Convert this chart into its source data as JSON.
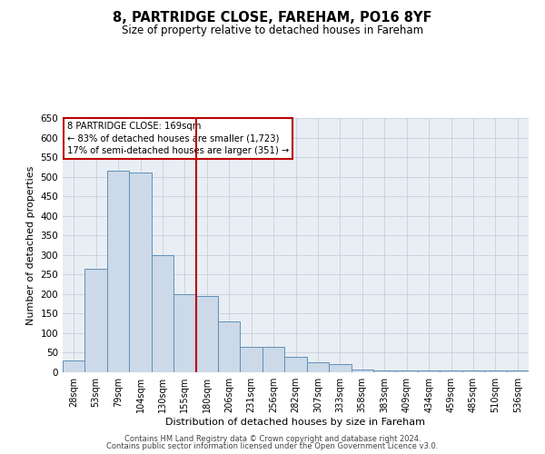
{
  "title1": "8, PARTRIDGE CLOSE, FAREHAM, PO16 8YF",
  "title2": "Size of property relative to detached houses in Fareham",
  "xlabel": "Distribution of detached houses by size in Fareham",
  "ylabel": "Number of detached properties",
  "categories": [
    "28sqm",
    "53sqm",
    "79sqm",
    "104sqm",
    "130sqm",
    "155sqm",
    "180sqm",
    "206sqm",
    "231sqm",
    "256sqm",
    "282sqm",
    "307sqm",
    "333sqm",
    "358sqm",
    "383sqm",
    "409sqm",
    "434sqm",
    "459sqm",
    "485sqm",
    "510sqm",
    "536sqm"
  ],
  "values": [
    30,
    265,
    515,
    510,
    300,
    200,
    195,
    130,
    65,
    65,
    40,
    25,
    20,
    8,
    5,
    5,
    5,
    5,
    5,
    5,
    5
  ],
  "bar_color": "#ccd9e8",
  "bar_edgecolor": "#6090b8",
  "bar_linewidth": 0.7,
  "vline_x_index": 6,
  "vline_color": "#bb0000",
  "vline_linewidth": 1.5,
  "annotation_line1": "8 PARTRIDGE CLOSE: 169sqm",
  "annotation_line2": "← 83% of detached houses are smaller (1,723)",
  "annotation_line3": "17% of semi-detached houses are larger (351) →",
  "box_edgecolor": "#bb0000",
  "ylim": [
    0,
    650
  ],
  "yticks": [
    0,
    50,
    100,
    150,
    200,
    250,
    300,
    350,
    400,
    450,
    500,
    550,
    600,
    650
  ],
  "footer_line1": "Contains HM Land Registry data © Crown copyright and database right 2024.",
  "footer_line2": "Contains public sector information licensed under the Open Government Licence v3.0.",
  "background_color": "#e8eef4",
  "grid_color": "#c8d0da",
  "fig_width": 6.0,
  "fig_height": 5.0,
  "dpi": 100
}
